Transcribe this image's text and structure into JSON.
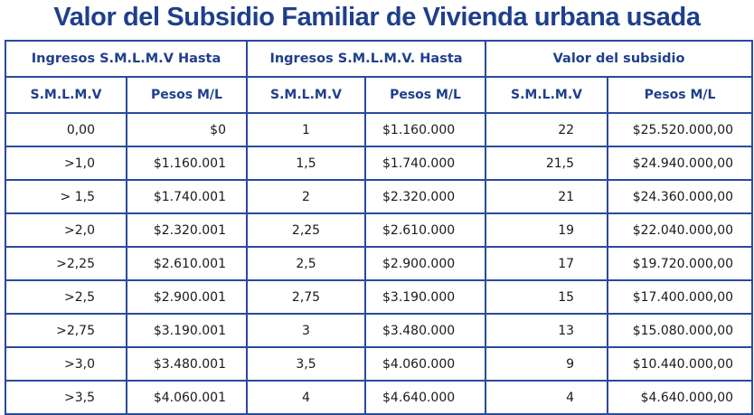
{
  "title": "Valor del Subsidio Familiar de Vivienda urbana usada",
  "headers": {
    "group1": "Ingresos S.M.L.M.V Hasta",
    "group2": "Ingresos S.M.L.M.V.  Hasta",
    "group3": "Valor del subsidio",
    "sub": [
      "S.M.L.M.V",
      "Pesos M/L",
      "S.M.L.M.V",
      "Pesos M/L",
      "S.M.L.M.V",
      "Pesos M/L"
    ]
  },
  "rows": [
    [
      "0,00",
      "$0",
      "1",
      "$1.160.000",
      "22",
      "$25.520.000,00"
    ],
    [
      ">1,0",
      "$1.160.001",
      "1,5",
      "$1.740.000",
      "21,5",
      "$24.940.000,00"
    ],
    [
      "> 1,5",
      "$1.740.001",
      "2",
      "$2.320.000",
      "21",
      "$24.360.000,00"
    ],
    [
      ">2,0",
      "$2.320.001",
      "2,25",
      "$2.610.000",
      "19",
      "$22.040.000,00"
    ],
    [
      ">2,25",
      "$2.610.001",
      "2,5",
      "$2.900.000",
      "17",
      "$19.720.000,00"
    ],
    [
      ">2,5",
      "$2.900.001",
      "2,75",
      "$3.190.000",
      "15",
      "$17.400.000,00"
    ],
    [
      ">2,75",
      "$3.190.001",
      "3",
      "$3.480.000",
      "13",
      "$15.080.000,00"
    ],
    [
      ">3,0",
      "$3.480.001",
      "3,5",
      "$4.060.000",
      "9",
      "$10.440.000,00"
    ],
    [
      ">3,5",
      "$4.060.001",
      "4",
      "$4.640.000",
      "4",
      "$4.640.000,00"
    ]
  ],
  "colors": {
    "title": "#1f3f8c",
    "border": "#2a4a9c",
    "header_text": "#1f3f8c"
  }
}
